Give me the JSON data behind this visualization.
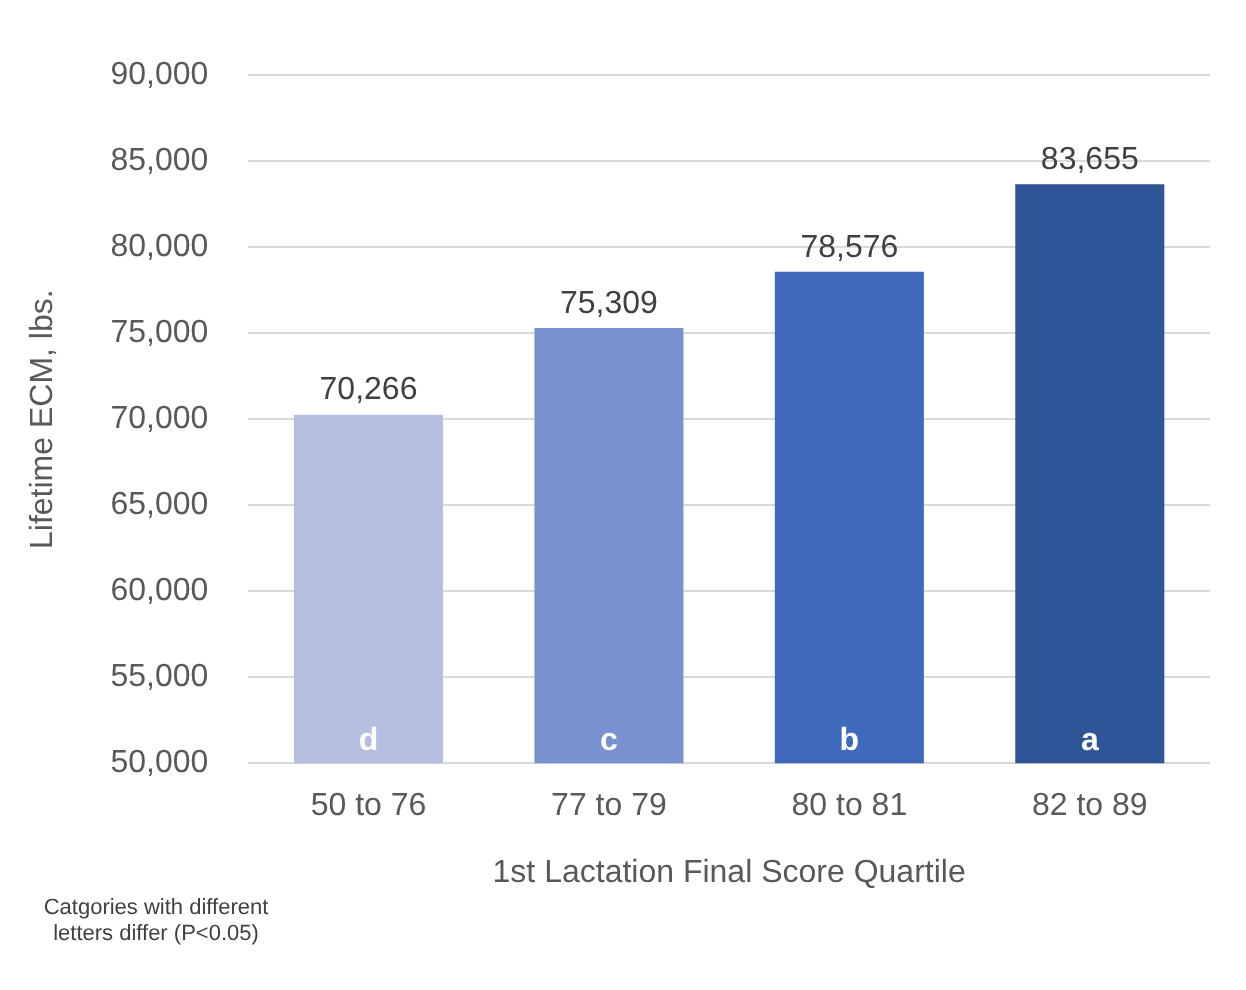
{
  "chart_data": {
    "type": "bar",
    "xlabel": "1st Lactation Final Score Quartile",
    "ylabel": "Lifetime ECM, lbs.",
    "categories": [
      "50 to 76",
      "77 to 79",
      "80 to 81",
      "82 to 89"
    ],
    "values": [
      70266,
      75309,
      78576,
      83655
    ],
    "value_labels": [
      "70,266",
      "75,309",
      "78,576",
      "83,655"
    ],
    "colors": [
      "#b4bfe0",
      "#7992cf",
      "#3f6abb",
      "#2f5597"
    ],
    "ylim": [
      50000,
      90000
    ],
    "yticks": [
      {
        "value": 50000,
        "label": "50,000"
      },
      {
        "value": 55000,
        "label": "55,000"
      },
      {
        "value": 60000,
        "label": "60,000"
      },
      {
        "value": 65000,
        "label": "65,000"
      },
      {
        "value": 70000,
        "label": "70,000"
      },
      {
        "value": 75000,
        "label": "75,000"
      },
      {
        "value": 80000,
        "label": "80,000"
      },
      {
        "value": 85000,
        "label": "85,000"
      },
      {
        "value": 90000,
        "label": "90,000"
      }
    ],
    "grid": "y",
    "legend": false,
    "annotations": [
      "d",
      "c",
      "b",
      "a",
      "Catgories with different letters differ (P<0.05)"
    ]
  }
}
